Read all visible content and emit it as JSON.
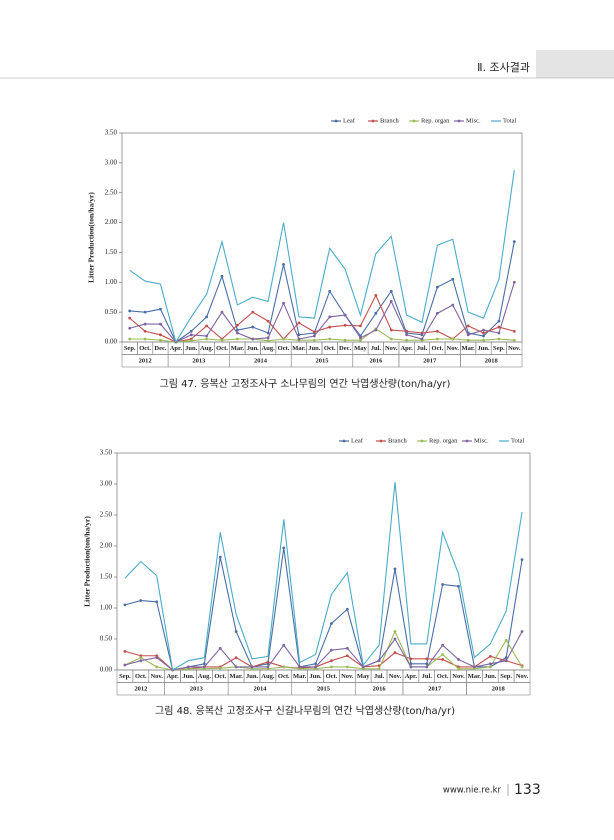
{
  "header": {
    "section": "Ⅱ. 조사결과"
  },
  "footer": {
    "url": "www.nie.re.kr",
    "page": "133"
  },
  "chart_data": [
    {
      "type": "line",
      "caption": "그림 47. 응복산 고정조사구 소나무림의 연간 낙엽생산량(ton/ha/yr)",
      "y_label": "Litter Production(ton/ha/yr)",
      "categories": [
        "Sep.",
        "Oct.",
        "Dec.",
        "Apr.",
        "Jun.",
        "Aug.",
        "Oct.",
        "Mar.",
        "Jun.",
        "Aug.",
        "Oct.",
        "Mar.",
        "Jun.",
        "Oct.",
        "Dec.",
        "May",
        "Jul.",
        "Nov.",
        "Apr.",
        "Jul.",
        "Oct.",
        "Nov.",
        "Mar.",
        "Jun.",
        "Sep.",
        "Nov."
      ],
      "year_groups": [
        {
          "label": "2012",
          "count": 3
        },
        {
          "label": "2013",
          "count": 4
        },
        {
          "label": "2014",
          "count": 4
        },
        {
          "label": "2015",
          "count": 4
        },
        {
          "label": "2016",
          "count": 3
        },
        {
          "label": "2017",
          "count": 4
        },
        {
          "label": "2018",
          "count": 4
        }
      ],
      "ylim": [
        0,
        3.5
      ],
      "yticks": [
        {
          "value": 0,
          "label": "0.00"
        },
        {
          "value": 0.5,
          "label": "0.50"
        },
        {
          "value": 1,
          "label": "1.00"
        },
        {
          "value": 1.5,
          "label": "1.50"
        },
        {
          "value": 2,
          "label": "2.00"
        },
        {
          "value": 2.5,
          "label": "2.50"
        },
        {
          "value": 3,
          "label": "3.00"
        },
        {
          "value": 3.5,
          "label": "3.50"
        }
      ],
      "grid": false,
      "legend": "top-right",
      "series": [
        {
          "name": "Leaf",
          "color": "#4a6fa5",
          "values": [
            0.52,
            0.5,
            0.55,
            0.0,
            0.18,
            0.42,
            1.1,
            0.2,
            0.25,
            0.15,
            1.3,
            0.12,
            0.15,
            0.85,
            0.45,
            0.1,
            0.48,
            0.85,
            0.15,
            0.12,
            0.92,
            1.05,
            0.15,
            0.1,
            0.35,
            1.68
          ]
        },
        {
          "name": "Branch",
          "color": "#c0504d",
          "values": [
            0.4,
            0.18,
            0.12,
            0.0,
            0.05,
            0.27,
            0.05,
            0.28,
            0.5,
            0.35,
            0.05,
            0.32,
            0.17,
            0.25,
            0.28,
            0.27,
            0.78,
            0.2,
            0.18,
            0.15,
            0.18,
            0.05,
            0.27,
            0.15,
            0.25,
            0.18
          ]
        },
        {
          "name": "Rep. organ",
          "color": "#9bbb59",
          "values": [
            0.05,
            0.05,
            0.03,
            0.0,
            0.02,
            0.05,
            0.03,
            0.05,
            0.05,
            0.02,
            0.05,
            0.03,
            0.03,
            0.05,
            0.03,
            0.03,
            0.22,
            0.05,
            0.03,
            0.03,
            0.05,
            0.05,
            0.03,
            0.03,
            0.05,
            0.03
          ]
        },
        {
          "name": "Misc.",
          "color": "#8064a2",
          "values": [
            0.23,
            0.3,
            0.3,
            0.0,
            0.12,
            0.1,
            0.5,
            0.15,
            0.05,
            0.07,
            0.65,
            0.05,
            0.1,
            0.42,
            0.45,
            0.07,
            0.2,
            0.68,
            0.12,
            0.05,
            0.48,
            0.62,
            0.12,
            0.2,
            0.15,
            1.0
          ]
        },
        {
          "name": "Total",
          "color": "#4bacc6",
          "values": [
            1.2,
            1.02,
            0.97,
            0.0,
            0.42,
            0.8,
            1.68,
            0.62,
            0.75,
            0.68,
            2.0,
            0.42,
            0.4,
            1.57,
            1.22,
            0.45,
            1.48,
            1.77,
            0.45,
            0.33,
            1.62,
            1.72,
            0.5,
            0.4,
            1.05,
            2.88
          ]
        }
      ]
    },
    {
      "type": "line",
      "caption": "그림 48. 응복산 고정조사구 신갈나무림의 연간 낙엽생산량(ton/ha/yr)",
      "y_label": "Litter Production(ton/ha/yr)",
      "categories": [
        "Sep.",
        "Oct.",
        "Nov.",
        "Apr.",
        "Jun.",
        "Aug.",
        "Oct.",
        "Mar.",
        "Jun.",
        "Aug.",
        "Oct.",
        "Mar.",
        "Jun.",
        "Oct.",
        "Nov.",
        "May",
        "Jul.",
        "Nov.",
        "Apr.",
        "Jul.",
        "Oct.",
        "Nov.",
        "Mar.",
        "Jun.",
        "Sep.",
        "Nov."
      ],
      "year_groups": [
        {
          "label": "2012",
          "count": 3
        },
        {
          "label": "2013",
          "count": 4
        },
        {
          "label": "2014",
          "count": 4
        },
        {
          "label": "2015",
          "count": 4
        },
        {
          "label": "2016",
          "count": 3
        },
        {
          "label": "2017",
          "count": 4
        },
        {
          "label": "2018",
          "count": 4
        }
      ],
      "ylim": [
        0,
        3.5
      ],
      "yticks": [
        {
          "value": 0,
          "label": "0.00"
        },
        {
          "value": 0.5,
          "label": "0.50"
        },
        {
          "value": 1,
          "label": "1.00"
        },
        {
          "value": 1.5,
          "label": "1.50"
        },
        {
          "value": 2,
          "label": "2.00"
        },
        {
          "value": 2.5,
          "label": "2.50"
        },
        {
          "value": 3,
          "label": "3.00"
        },
        {
          "value": 3.5,
          "label": "3.50"
        }
      ],
      "grid": false,
      "legend": "top-right",
      "series": [
        {
          "name": "Leaf",
          "color": "#4a6fa5",
          "values": [
            1.05,
            1.12,
            1.1,
            0.0,
            0.05,
            0.1,
            1.82,
            0.62,
            0.05,
            0.1,
            1.97,
            0.05,
            0.1,
            0.75,
            0.98,
            0.05,
            0.15,
            1.63,
            0.1,
            0.1,
            1.38,
            1.35,
            0.05,
            0.05,
            0.2,
            1.78
          ]
        },
        {
          "name": "Branch",
          "color": "#c0504d",
          "values": [
            0.3,
            0.23,
            0.23,
            0.0,
            0.02,
            0.05,
            0.05,
            0.2,
            0.05,
            0.13,
            0.05,
            0.03,
            0.05,
            0.15,
            0.23,
            0.05,
            0.07,
            0.28,
            0.18,
            0.18,
            0.17,
            0.05,
            0.05,
            0.22,
            0.15,
            0.07
          ]
        },
        {
          "name": "Rep. organ",
          "color": "#9bbb59",
          "values": [
            0.08,
            0.2,
            0.05,
            0.0,
            0.02,
            0.02,
            0.03,
            0.05,
            0.02,
            0.02,
            0.05,
            0.02,
            0.02,
            0.05,
            0.05,
            0.02,
            0.02,
            0.62,
            0.05,
            0.05,
            0.25,
            0.02,
            0.02,
            0.05,
            0.48,
            0.05
          ]
        },
        {
          "name": "Misc.",
          "color": "#8064a2",
          "values": [
            0.08,
            0.15,
            0.2,
            0.0,
            0.05,
            0.05,
            0.35,
            0.05,
            0.05,
            0.05,
            0.4,
            0.05,
            0.05,
            0.32,
            0.35,
            0.05,
            0.15,
            0.5,
            0.05,
            0.05,
            0.4,
            0.17,
            0.05,
            0.1,
            0.15,
            0.62
          ]
        },
        {
          "name": "Total",
          "color": "#4bacc6",
          "values": [
            1.48,
            1.75,
            1.52,
            0.0,
            0.15,
            0.2,
            2.22,
            0.9,
            0.18,
            0.22,
            2.43,
            0.12,
            0.25,
            1.22,
            1.57,
            0.08,
            0.4,
            3.03,
            0.42,
            0.42,
            2.22,
            1.55,
            0.2,
            0.42,
            0.95,
            2.55
          ]
        }
      ]
    }
  ]
}
